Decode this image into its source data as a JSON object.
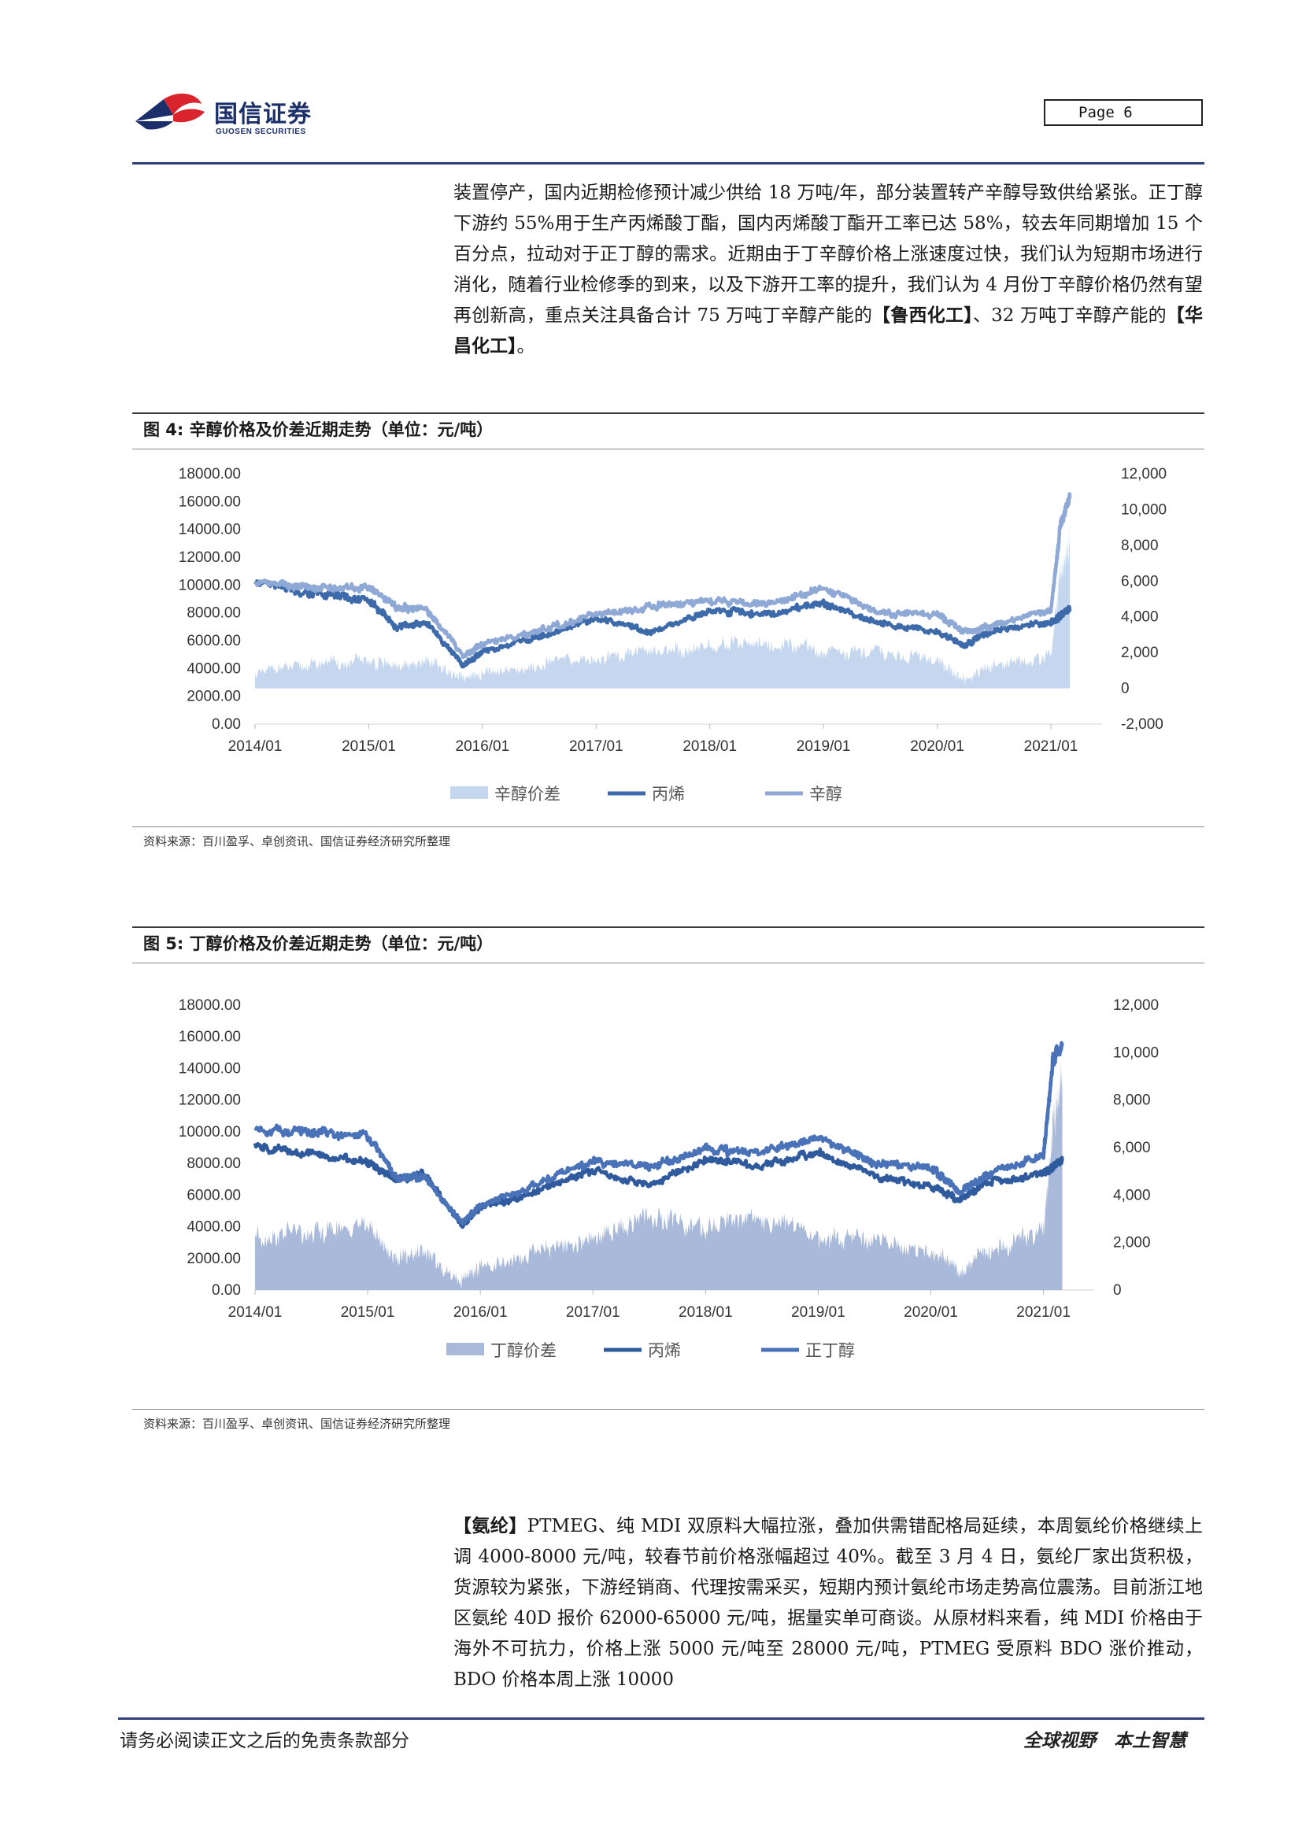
{
  "header": {
    "logo_cn": "国信证券",
    "logo_en": "GUOSEN SECURITIES",
    "page_label": "Page  6"
  },
  "intro": {
    "text_before": "装置停产，国内近期检修预计减少供给 18 万吨/年，部分装置转产辛醇导致供给紧张。正丁醇下游约 55%用于生产丙烯酸丁酯，国内丙烯酸丁酯开工率已达 58%，较去年同期增加 15 个百分点，拉动对于正丁醇的需求。近期由于丁辛醇价格上涨速度过快，我们认为短期市场进行消化，随着行业检修季的到来，以及下游开工率的提升，我们认为 4 月份丁辛醇价格仍然有望再创新高，重点关注具备合计 75 万吨丁辛醇产能的",
    "bold1": "【鲁西化工】",
    "text_mid": "、32 万吨丁辛醇产能的",
    "bold2": "【华昌化工】",
    "text_end": "。"
  },
  "figure4": {
    "title": "图 4:  辛醇价格及价差近期走势（单位：元/吨）",
    "source": "资料来源：百川盈孚、卓创资讯、国信证券经济研究所整理"
  },
  "figure5": {
    "title": "图 5:  丁醇价格及价差近期走势（单位：元/吨）",
    "source": "资料来源：百川盈孚、卓创资讯、国信证券经济研究所整理"
  },
  "chart_data": [
    {
      "type": "line",
      "x": [
        "2014/01",
        "2014/07",
        "2015/01",
        "2015/04",
        "2015/07",
        "2015/11",
        "2016/01",
        "2016/07",
        "2017/01",
        "2017/07",
        "2018/01",
        "2018/07",
        "2019/01",
        "2019/07",
        "2020/01",
        "2020/04",
        "2020/07",
        "2021/01",
        "2021/02",
        "2021/03"
      ],
      "series": [
        {
          "name": "辛醇价差",
          "kind": "area",
          "axis": "right",
          "values": [
            800,
            1400,
            1600,
            1200,
            1500,
            600,
            800,
            1400,
            1700,
            2100,
            2300,
            2700,
            2100,
            2000,
            1500,
            500,
            1300,
            1900,
            6200,
            8000
          ]
        },
        {
          "name": "丙烯",
          "kind": "line",
          "axis": "left",
          "values": [
            10200,
            9400,
            8900,
            6900,
            7400,
            4200,
            5200,
            6300,
            7600,
            6600,
            8200,
            7900,
            8700,
            7200,
            6600,
            5700,
            6800,
            7300,
            7800,
            8300
          ]
        },
        {
          "name": "辛醇",
          "kind": "line",
          "axis": "left",
          "values": [
            10200,
            9800,
            9800,
            8400,
            8300,
            4900,
            5800,
            6700,
            7900,
            8500,
            8800,
            8600,
            9800,
            7900,
            7900,
            6600,
            7100,
            8200,
            14200,
            16500
          ]
        }
      ],
      "xticks": [
        "2014/01",
        "2015/01",
        "2016/01",
        "2017/01",
        "2018/01",
        "2019/01",
        "2020/01",
        "2021/01"
      ],
      "yticks_left": [
        "18000.00",
        "16000.00",
        "14000.00",
        "12000.00",
        "10000.00",
        "8000.00",
        "6000.00",
        "4000.00",
        "2000.00",
        "0.00"
      ],
      "yticks_right": [
        "12,000",
        "10,000",
        "8,000",
        "6,000",
        "4,000",
        "2,000",
        "0",
        "-2,000"
      ],
      "ylim_left": [
        0,
        18000
      ],
      "ylim_right": [
        -2000,
        12000
      ],
      "legend_position": "bottom",
      "colors": {
        "辛醇价差": "#c5d7ef",
        "丙烯": "#3d6aaa",
        "辛醇": "#8fa9d6"
      },
      "grid": false
    },
    {
      "type": "line",
      "x": [
        "2014/01",
        "2014/07",
        "2015/01",
        "2015/04",
        "2015/07",
        "2015/11",
        "2016/01",
        "2016/07",
        "2017/01",
        "2017/07",
        "2018/01",
        "2018/07",
        "2019/01",
        "2019/07",
        "2020/01",
        "2020/04",
        "2020/07",
        "2021/01",
        "2021/02",
        "2021/03"
      ],
      "series": [
        {
          "name": "丁醇价差",
          "kind": "area",
          "axis": "right",
          "values": [
            2300,
            2500,
            2600,
            1300,
            1600,
            400,
            1000,
            1600,
            2200,
            3000,
            2700,
            2900,
            2200,
            2100,
            1600,
            800,
            1700,
            2400,
            6800,
            9000
          ]
        },
        {
          "name": "丙烯",
          "kind": "line",
          "axis": "left",
          "values": [
            9000,
            8600,
            8100,
            6900,
            7400,
            4100,
            5200,
            6200,
            7600,
            6600,
            8200,
            7900,
            8700,
            7200,
            6600,
            5700,
            6800,
            7300,
            7800,
            8300
          ]
        },
        {
          "name": "正丁醇",
          "kind": "line",
          "axis": "left",
          "values": [
            10100,
            10000,
            9700,
            7100,
            7200,
            4300,
            5300,
            6700,
            8100,
            7800,
            8900,
            8700,
            9700,
            7900,
            7800,
            6200,
            7300,
            8500,
            14500,
            15600
          ]
        }
      ],
      "xticks": [
        "2014/01",
        "2015/01",
        "2016/01",
        "2017/01",
        "2018/01",
        "2019/01",
        "2020/01",
        "2021/01"
      ],
      "yticks_left": [
        "18000.00",
        "16000.00",
        "14000.00",
        "12000.00",
        "10000.00",
        "8000.00",
        "6000.00",
        "4000.00",
        "2000.00",
        "0.00"
      ],
      "yticks_right": [
        "12,000",
        "10,000",
        "8,000",
        "6,000",
        "4,000",
        "2,000",
        "0"
      ],
      "ylim_left": [
        0,
        18000
      ],
      "ylim_right": [
        0,
        12000
      ],
      "legend_position": "bottom",
      "colors": {
        "丁醇价差": "#a9b9da",
        "丙烯": "#2f5b9e",
        "正丁醇": "#4a72b8"
      },
      "grid": false
    }
  ],
  "spandex": {
    "bold_tag": "【氨纶】",
    "text": "PTMEG、纯 MDI 双原料大幅拉涨，叠加供需错配格局延续，本周氨纶价格继续上调 4000-8000 元/吨，较春节前价格涨幅超过 40%。截至 3 月 4 日，氨纶厂家出货积极，货源较为紧张，下游经销商、代理按需采买，短期内预计氨纶市场走势高位震荡。目前浙江地区氨纶 40D 报价 62000-65000 元/吨，据量实单可商谈。从原材料来看，纯 MDI 价格由于海外不可抗力，价格上涨 5000 元/吨至 28000 元/吨，PTMEG 受原料 BDO 涨价推动，BDO 价格本周上涨 10000"
  },
  "footer": {
    "left": "请务必阅读正文之后的免责条款部分",
    "right": "全球视野　本土智慧"
  }
}
